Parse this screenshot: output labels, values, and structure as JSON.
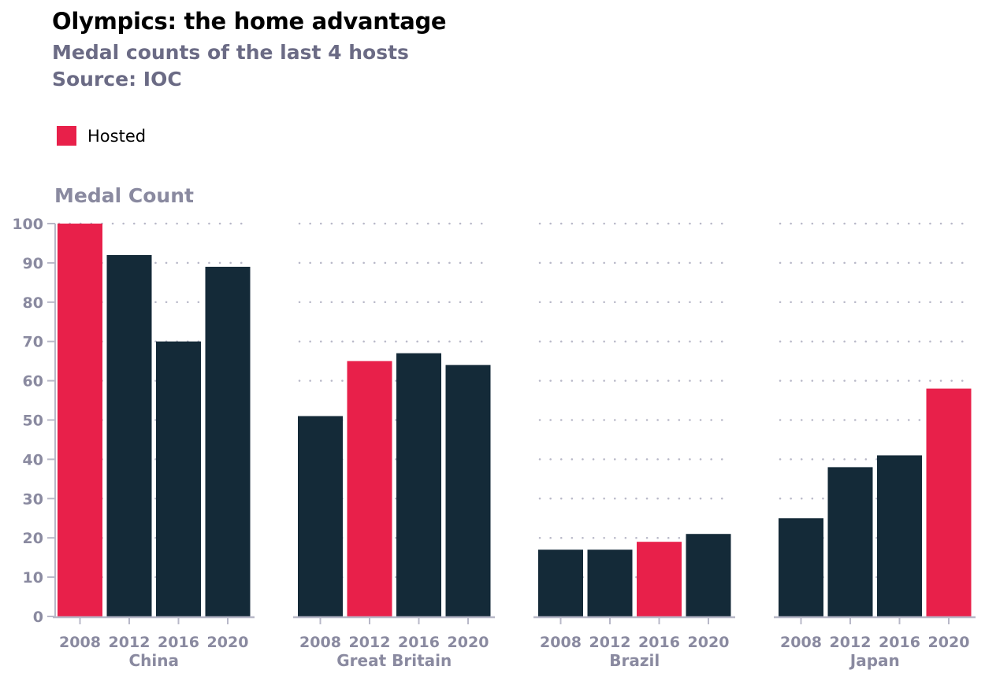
{
  "chart_data": {
    "type": "bar",
    "title": "Olympics: the home advantage",
    "subtitle": "Medal counts of the last 4 hosts",
    "source": "Source: IOC",
    "ylabel": "Medal Count",
    "ylim": [
      0,
      100
    ],
    "yticks": [
      "0",
      "10",
      "20",
      "30",
      "40",
      "50",
      "60",
      "70",
      "80",
      "90",
      "100"
    ],
    "grid": "dotted horizontal",
    "legend": {
      "position": "top-left",
      "entries": [
        {
          "label": "Hosted",
          "color": "#e8204a"
        }
      ]
    },
    "colors": {
      "hosted": "#e8204a",
      "default": "#142a38"
    },
    "groups": [
      {
        "name": "China",
        "categories": [
          "2008",
          "2012",
          "2016",
          "2020"
        ],
        "values": [
          100,
          92,
          70,
          89
        ],
        "hosted_index": 0
      },
      {
        "name": "Great Britain",
        "categories": [
          "2008",
          "2012",
          "2016",
          "2020"
        ],
        "values": [
          51,
          65,
          67,
          64
        ],
        "hosted_index": 1
      },
      {
        "name": "Brazil",
        "categories": [
          "2008",
          "2012",
          "2016",
          "2020"
        ],
        "values": [
          17,
          17,
          19,
          21
        ],
        "hosted_index": 2
      },
      {
        "name": "Japan",
        "categories": [
          "2008",
          "2012",
          "2016",
          "2020"
        ],
        "values": [
          25,
          38,
          41,
          58
        ],
        "hosted_index": 3
      }
    ]
  }
}
